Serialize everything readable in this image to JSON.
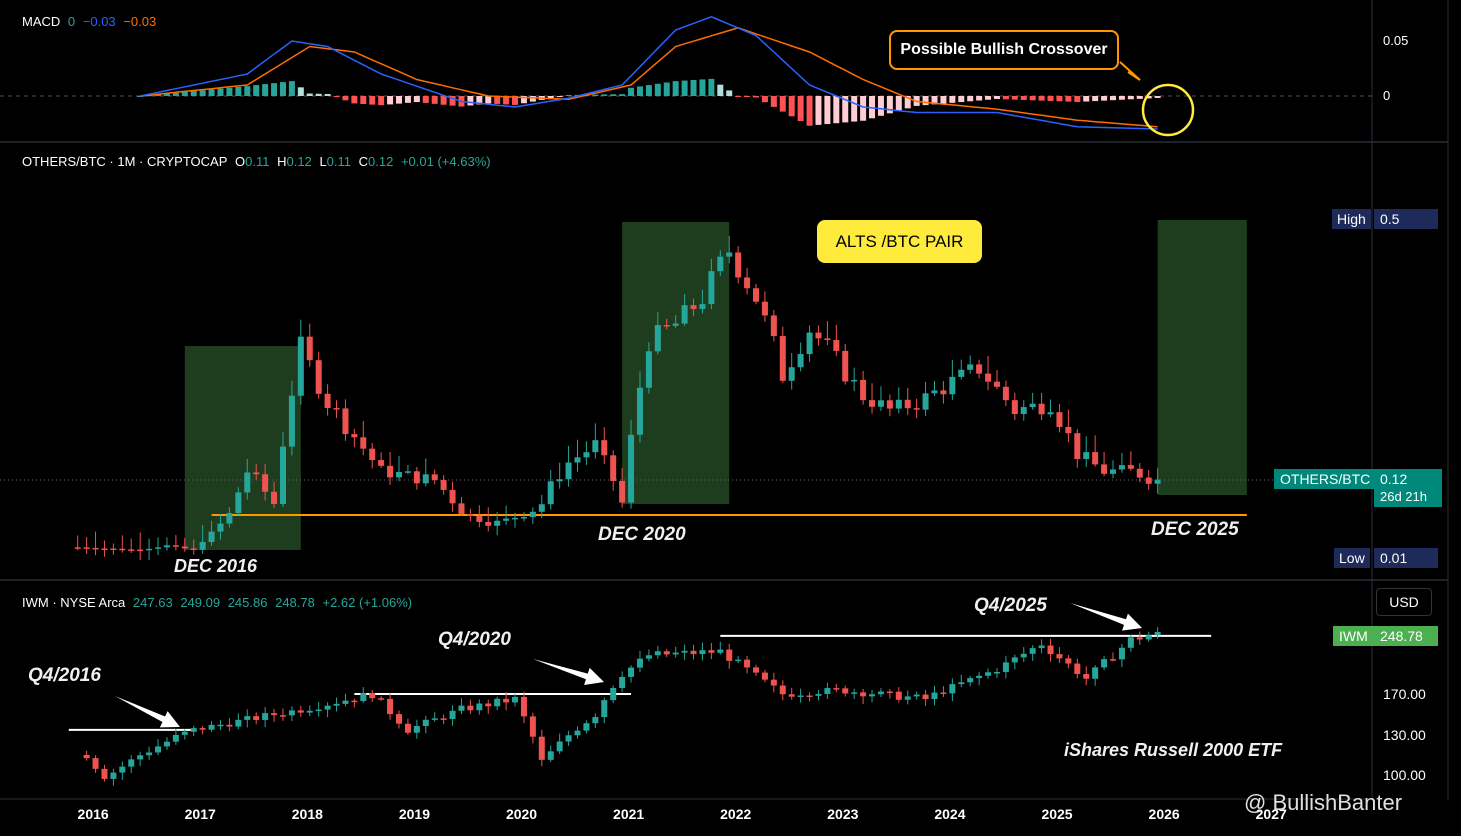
{
  "colors": {
    "background": "#000000",
    "up_candle": "#26a69a",
    "down_candle": "#ef5350",
    "macd_line": "#2962ff",
    "signal_line": "#ff6d00",
    "support_line": "#ff9800",
    "highlight_zone": "#1e3d1e",
    "alts_label_bg": "#ffeb3b",
    "iwm_tag": "#4caf50",
    "highlow_tag": "#1e2a5a",
    "others_tag": "#00897b"
  },
  "macd_panel": {
    "title": "MACD",
    "value_hist": "0",
    "value_macd": "−0.03",
    "value_signal": "−0.03",
    "y_ticks": [
      "0.05",
      "0"
    ],
    "callout": "Possible Bullish Crossover"
  },
  "main_panel": {
    "symbol": "OTHERS/BTC · 1M · CRYPTOCAP",
    "ohlc": {
      "o_label": "O",
      "o_val": "0.11",
      "h_label": "H",
      "h_val": "0.12",
      "l_label": "L",
      "l_val": "0.11",
      "c_label": "C",
      "c_val": "0.12",
      "change": "+0.01 (+4.63%)"
    },
    "pair_label": "ALTS /BTC PAIR",
    "high_tag": {
      "label": "High",
      "value": "0.5"
    },
    "low_tag": {
      "label": "Low",
      "value": "0.01"
    },
    "price_tag": {
      "label": "OTHERS/BTC",
      "value": "0.12",
      "countdown": "26d 21h"
    },
    "annotations": [
      "DEC 2016",
      "DEC 2020",
      "DEC 2025"
    ]
  },
  "iwm_panel": {
    "symbol": "IWM · NYSE Arca",
    "o": "247.63",
    "h": "249.09",
    "l": "245.86",
    "c": "248.78",
    "change": "+2.62 (+1.06%)",
    "currency": "USD",
    "price_tag": {
      "label": "IWM",
      "value": "248.78"
    },
    "y_ticks": [
      "170.00",
      "130.00",
      "100.00"
    ],
    "annotations": [
      "Q4/2016",
      "Q4/2020",
      "Q4/2025"
    ],
    "etf_label": "iShares Russell 2000 ETF"
  },
  "x_axis": {
    "ticks": [
      "2016",
      "2017",
      "2018",
      "2019",
      "2020",
      "2021",
      "2022",
      "2023",
      "2024",
      "2025",
      "2026",
      "2027"
    ]
  },
  "watermark": "@ BullishBanter",
  "chart_data": [
    {
      "type": "candlestick",
      "title": "OTHERS/BTC · 1M · CRYPTOCAP",
      "x": [
        "2016-01",
        "2017-12",
        "2018-01",
        "2019-06",
        "2020-12",
        "2021-01",
        "2021-10",
        "2022-06",
        "2023-01",
        "2024-03",
        "2025-01",
        "2025-12"
      ],
      "series": [
        {
          "name": "OTHERS/BTC",
          "anchors": [
            {
              "x": "2015-11",
              "y": 0.018
            },
            {
              "x": "2016-06",
              "y": 0.012
            },
            {
              "x": "2016-09",
              "y": 0.022
            },
            {
              "x": "2016-12",
              "y": 0.012
            },
            {
              "x": "2017-03",
              "y": 0.07
            },
            {
              "x": "2017-06",
              "y": 0.13
            },
            {
              "x": "2017-09",
              "y": 0.1
            },
            {
              "x": "2017-12",
              "y": 0.29
            },
            {
              "x": "2018-03",
              "y": 0.21
            },
            {
              "x": "2018-09",
              "y": 0.13
            },
            {
              "x": "2019-03",
              "y": 0.12
            },
            {
              "x": "2019-09",
              "y": 0.07
            },
            {
              "x": "2020-03",
              "y": 0.1
            },
            {
              "x": "2020-06",
              "y": 0.14
            },
            {
              "x": "2020-09",
              "y": 0.16
            },
            {
              "x": "2020-12",
              "y": 0.1
            },
            {
              "x": "2021-03",
              "y": 0.3
            },
            {
              "x": "2021-06",
              "y": 0.33
            },
            {
              "x": "2021-09",
              "y": 0.38
            },
            {
              "x": "2021-12",
              "y": 0.47
            },
            {
              "x": "2022-03",
              "y": 0.38
            },
            {
              "x": "2022-06",
              "y": 0.25
            },
            {
              "x": "2022-09",
              "y": 0.32
            },
            {
              "x": "2022-12",
              "y": 0.27
            },
            {
              "x": "2023-03",
              "y": 0.22
            },
            {
              "x": "2023-06",
              "y": 0.2
            },
            {
              "x": "2023-09",
              "y": 0.21
            },
            {
              "x": "2024-01",
              "y": 0.24
            },
            {
              "x": "2024-04",
              "y": 0.26
            },
            {
              "x": "2024-08",
              "y": 0.2
            },
            {
              "x": "2024-12",
              "y": 0.21
            },
            {
              "x": "2025-03",
              "y": 0.15
            },
            {
              "x": "2025-06",
              "y": 0.13
            },
            {
              "x": "2025-09",
              "y": 0.13
            },
            {
              "x": "2025-12",
              "y": 0.12
            }
          ]
        }
      ],
      "support_level": 0.09,
      "highlight_periods": [
        [
          "2016-11",
          "2017-12"
        ],
        [
          "2020-12",
          "2021-12"
        ],
        [
          "2025-12",
          "2026-10"
        ]
      ],
      "ylim": [
        0.01,
        0.5
      ]
    },
    {
      "type": "line",
      "title": "MACD",
      "series": [
        {
          "name": "MACD",
          "anchors": [
            {
              "x": "2016-06",
              "y": 0.0
            },
            {
              "x": "2017-06",
              "y": 0.02
            },
            {
              "x": "2017-11",
              "y": 0.05
            },
            {
              "x": "2018-03",
              "y": 0.045
            },
            {
              "x": "2018-09",
              "y": 0.02
            },
            {
              "x": "2019-06",
              "y": -0.005
            },
            {
              "x": "2019-12",
              "y": -0.01
            },
            {
              "x": "2020-06",
              "y": -0.002
            },
            {
              "x": "2020-12",
              "y": 0.01
            },
            {
              "x": "2021-06",
              "y": 0.06
            },
            {
              "x": "2021-10",
              "y": 0.072
            },
            {
              "x": "2022-03",
              "y": 0.055
            },
            {
              "x": "2022-09",
              "y": 0.01
            },
            {
              "x": "2023-03",
              "y": -0.01
            },
            {
              "x": "2023-09",
              "y": -0.015
            },
            {
              "x": "2024-06",
              "y": -0.015
            },
            {
              "x": "2025-03",
              "y": -0.028
            },
            {
              "x": "2025-12",
              "y": -0.03
            }
          ]
        },
        {
          "name": "Signal",
          "anchors": [
            {
              "x": "2016-06",
              "y": 0.0
            },
            {
              "x": "2017-06",
              "y": 0.01
            },
            {
              "x": "2018-01",
              "y": 0.045
            },
            {
              "x": "2018-06",
              "y": 0.04
            },
            {
              "x": "2019-01",
              "y": 0.015
            },
            {
              "x": "2019-09",
              "y": 0.0
            },
            {
              "x": "2020-06",
              "y": -0.003
            },
            {
              "x": "2021-01",
              "y": 0.01
            },
            {
              "x": "2021-06",
              "y": 0.045
            },
            {
              "x": "2022-01",
              "y": 0.062
            },
            {
              "x": "2022-09",
              "y": 0.04
            },
            {
              "x": "2023-03",
              "y": 0.015
            },
            {
              "x": "2023-09",
              "y": -0.005
            },
            {
              "x": "2024-06",
              "y": -0.012
            },
            {
              "x": "2025-03",
              "y": -0.022
            },
            {
              "x": "2025-12",
              "y": -0.028
            }
          ]
        }
      ],
      "ylim": [
        -0.035,
        0.075
      ]
    },
    {
      "type": "candlestick",
      "title": "IWM · NYSE Arca",
      "series": [
        {
          "name": "IWM",
          "anchors": [
            {
              "x": "2015-12",
              "y": 115
            },
            {
              "x": "2016-02",
              "y": 98
            },
            {
              "x": "2016-06",
              "y": 115
            },
            {
              "x": "2016-12",
              "y": 135
            },
            {
              "x": "2017-12",
              "y": 155
            },
            {
              "x": "2018-08",
              "y": 170
            },
            {
              "x": "2018-12",
              "y": 135
            },
            {
              "x": "2019-06",
              "y": 155
            },
            {
              "x": "2019-12",
              "y": 165
            },
            {
              "x": "2020-03",
              "y": 110
            },
            {
              "x": "2020-09",
              "y": 150
            },
            {
              "x": "2020-12",
              "y": 196
            },
            {
              "x": "2021-03",
              "y": 220
            },
            {
              "x": "2021-11",
              "y": 225
            },
            {
              "x": "2022-06",
              "y": 170
            },
            {
              "x": "2022-12",
              "y": 175
            },
            {
              "x": "2023-10",
              "y": 165
            },
            {
              "x": "2024-06",
              "y": 202
            },
            {
              "x": "2024-11",
              "y": 235
            },
            {
              "x": "2025-04",
              "y": 190
            },
            {
              "x": "2025-09",
              "y": 240
            },
            {
              "x": "2025-12",
              "y": 248.78
            }
          ]
        }
      ],
      "reference_levels": [
        {
          "y": 135,
          "from": "2015-10",
          "to": "2016-12"
        },
        {
          "y": 170,
          "from": "2018-06",
          "to": "2021-01"
        },
        {
          "y": 245,
          "from": "2021-11",
          "to": "2026-06"
        }
      ],
      "ylim": [
        90,
        260
      ]
    }
  ]
}
